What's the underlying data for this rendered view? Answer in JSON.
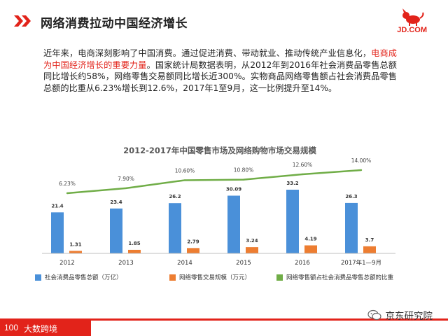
{
  "header": {
    "title": "网络消费拉动中国经济增长",
    "brand_text": "JD.COM"
  },
  "intro": {
    "part1": "近年来，电商深刻影响了中国消费。通过促进消费、带动就业、推动传统产业信息化，",
    "highlight": "电商成为中国经济增长的重要力量",
    "part2": "。国家统计局数据表明，从2012年到2016年社会消费品零售总额同比增长约58%，网络零售交易额同比增长近300%。实物商品网络零售额占社会消费品零售总额的比重从6.23%增长到12.6%，2017年1至9月，这一比例提升至14%。"
  },
  "colors": {
    "brand_red": "#e2231a",
    "bar_blue": "#4a90d9",
    "bar_orange": "#ed7d31",
    "line_green": "#70ad47"
  },
  "chart_data": {
    "type": "bar",
    "title": "2012-2017年中国零售市场及网络购物市场交易规模",
    "categories": [
      "2012",
      "2013",
      "2014",
      "2015",
      "2016",
      "2017年1—9月"
    ],
    "series": [
      {
        "name": "社会消费品零售总额（万亿）",
        "kind": "bar",
        "color": "#4a90d9",
        "values": [
          21.4,
          23.4,
          26.2,
          30.09,
          33.2,
          26.3
        ],
        "labels": [
          "21.4",
          "23.4",
          "26.2",
          "30.09",
          "33.2",
          "26.3"
        ]
      },
      {
        "name": "网络零售交易规模（万元）",
        "kind": "bar",
        "color": "#ed7d31",
        "values": [
          1.31,
          1.85,
          2.79,
          3.24,
          4.19,
          3.7
        ],
        "labels": [
          "1.31",
          "1.85",
          "2.79",
          "3.24",
          "4.19",
          "3.7"
        ]
      },
      {
        "name": "网络零售额占社会消费品零售总额的比重",
        "kind": "line",
        "color": "#70ad47",
        "values": [
          6.23,
          7.9,
          10.6,
          10.8,
          12.6,
          14.0
        ],
        "labels": [
          "6.23%",
          "7.90%",
          "10.60%",
          "10.80%",
          "12.60%",
          "14.00%"
        ]
      }
    ],
    "legend_position": "bottom",
    "grid": false
  },
  "footer": {
    "logo_number": "100",
    "logo_text": "大数跨境",
    "watermark": "京东研究院"
  }
}
